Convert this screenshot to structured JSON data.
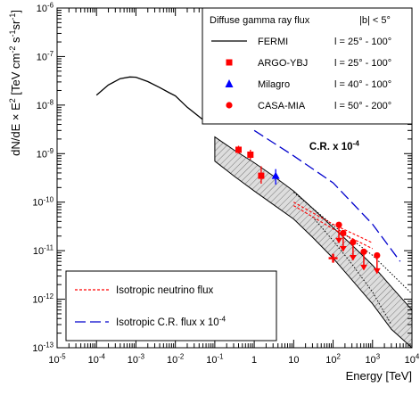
{
  "chart_data": {
    "type": "line",
    "x_scale": "log",
    "y_scale": "log",
    "xlim": [
      1e-05,
      10000
    ],
    "ylim": [
      1e-13,
      1e-06
    ],
    "xlabel": "Energy [TeV]",
    "ylabel_parts": [
      "dN/dE × E",
      "2",
      " [TeV cm",
      "-2",
      " s",
      "-1",
      "sr",
      "-1",
      "]"
    ],
    "x_ticks": [
      {
        "v": 1e-05,
        "base": "10",
        "exp": "-5"
      },
      {
        "v": 0.0001,
        "base": "10",
        "exp": "-4"
      },
      {
        "v": 0.001,
        "base": "10",
        "exp": "-3"
      },
      {
        "v": 0.01,
        "base": "10",
        "exp": "-2"
      },
      {
        "v": 0.1,
        "base": "10",
        "exp": "-1"
      },
      {
        "v": 1,
        "base": "1",
        "exp": ""
      },
      {
        "v": 10,
        "base": "10",
        "exp": ""
      },
      {
        "v": 100,
        "base": "10",
        "exp": "2"
      },
      {
        "v": 1000,
        "base": "10",
        "exp": "3"
      },
      {
        "v": 10000,
        "base": "10",
        "exp": "4"
      }
    ],
    "y_ticks": [
      {
        "v": 1e-06,
        "base": "10",
        "exp": "-6"
      },
      {
        "v": 1e-07,
        "base": "10",
        "exp": "-7"
      },
      {
        "v": 1e-08,
        "base": "10",
        "exp": "-8"
      },
      {
        "v": 1e-09,
        "base": "10",
        "exp": "-9"
      },
      {
        "v": 1e-10,
        "base": "10",
        "exp": "-10"
      },
      {
        "v": 1e-11,
        "base": "10",
        "exp": "-11"
      },
      {
        "v": 1e-12,
        "base": "10",
        "exp": "-12"
      },
      {
        "v": 1e-13,
        "base": "10",
        "exp": "-13"
      }
    ],
    "fermi_curve": [
      [
        0.0001,
        1.6e-08
      ],
      [
        0.0002,
        2.6e-08
      ],
      [
        0.0004,
        3.5e-08
      ],
      [
        0.0007,
        3.8e-08
      ],
      [
        0.001,
        3.75e-08
      ],
      [
        0.002,
        3.05e-08
      ],
      [
        0.004,
        2.3e-08
      ],
      [
        0.007,
        1.8e-08
      ],
      [
        0.01,
        1.55e-08
      ],
      [
        0.02,
        9e-09
      ],
      [
        0.05,
        5e-09
      ]
    ],
    "model_band": {
      "upper": [
        [
          0.1,
          2.2e-09
        ],
        [
          0.3,
          1.2e-09
        ],
        [
          1,
          6.5e-10
        ],
        [
          3,
          3.5e-10
        ],
        [
          10,
          1.7e-10
        ],
        [
          30,
          7.5e-11
        ],
        [
          100,
          3e-11
        ],
        [
          300,
          1.3e-11
        ],
        [
          1000,
          5e-12
        ],
        [
          3000,
          1.8e-12
        ],
        [
          10000,
          6e-13
        ]
      ],
      "lower": [
        [
          10000,
          1e-13
        ],
        [
          3000,
          2.4e-13
        ],
        [
          1000,
          8e-13
        ],
        [
          300,
          2.5e-12
        ],
        [
          100,
          7e-12
        ],
        [
          30,
          1.9e-11
        ],
        [
          10,
          4.5e-11
        ],
        [
          3,
          9e-11
        ],
        [
          1,
          1.7e-10
        ],
        [
          0.3,
          3.5e-10
        ],
        [
          0.1,
          7e-10
        ]
      ],
      "dotted_lines": [
        [
          [
            10,
            1.6e-10
          ],
          [
            100,
            3.3e-11
          ],
          [
            1000,
            8e-12
          ],
          [
            10000,
            1.3e-12
          ]
        ],
        [
          [
            30,
            5e-11
          ],
          [
            100,
            1.6e-11
          ],
          [
            300,
            5.3e-12
          ],
          [
            1000,
            1.4e-12
          ],
          [
            3000,
            3e-13
          ]
        ]
      ]
    },
    "legend_title": "Diffuse gamma ray flux",
    "legend_lat": "|b| < 5°",
    "series": [
      {
        "name": "FERMI",
        "range": "l = 25° - 100°",
        "color": "#000000",
        "marker": "line"
      },
      {
        "name": "ARGO-YBJ",
        "range": "l = 25° - 100°",
        "color": "#ff0000",
        "marker": "square",
        "points": [
          [
            0.4,
            1.2e-09,
            1e-09,
            1.45e-09
          ],
          [
            0.8,
            9.5e-10,
            7.5e-10,
            1.2e-09
          ],
          [
            1.5,
            3.5e-10,
            2.4e-10,
            5.5e-10
          ]
        ]
      },
      {
        "name": "Milagro",
        "range": "l = 40° - 100°",
        "color": "#0000ff",
        "marker": "triangle",
        "points": [
          [
            3.5,
            3.5e-10,
            2.3e-10,
            4.8e-10
          ]
        ]
      },
      {
        "name": "CASA-MIA",
        "range": "l = 50° - 200°",
        "color": "#ff0000",
        "marker": "circle",
        "upper_limits": [
          [
            140,
            3.4e-11
          ],
          [
            180,
            2.3e-11
          ],
          [
            320,
            1.5e-11
          ],
          [
            600,
            9.5e-12
          ],
          [
            1300,
            8e-12
          ]
        ]
      }
    ],
    "extra_point": [
      100,
      7e-12
    ],
    "neutrino_curves": [
      [
        [
          10,
          1e-10
        ],
        [
          100,
          3.5e-11
        ],
        [
          1000,
          1.45e-11
        ]
      ],
      [
        [
          10,
          8.5e-11
        ],
        [
          100,
          2.8e-11
        ],
        [
          1000,
          1.1e-11
        ]
      ]
    ],
    "cr_curve": [
      [
        1,
        3e-09
      ],
      [
        10,
        9e-10
      ],
      [
        100,
        2.5e-10
      ],
      [
        1000,
        3.5e-11
      ],
      [
        5000,
        6e-12
      ]
    ],
    "cr_label": "C.R. x 10",
    "cr_label_exp": "-4",
    "lower_legend": [
      {
        "label": "Isotropic neutrino flux",
        "color": "#ff0000",
        "style": "dashed"
      },
      {
        "label": "Isotropic C.R. flux x 10",
        "exp": "-4",
        "color": "#0000cc",
        "style": "longdash"
      }
    ],
    "colors": {
      "data_red": "#ff0000",
      "data_blue": "#0000ff",
      "cr_blue": "#0000cc",
      "band": "#bbbbbb"
    }
  }
}
